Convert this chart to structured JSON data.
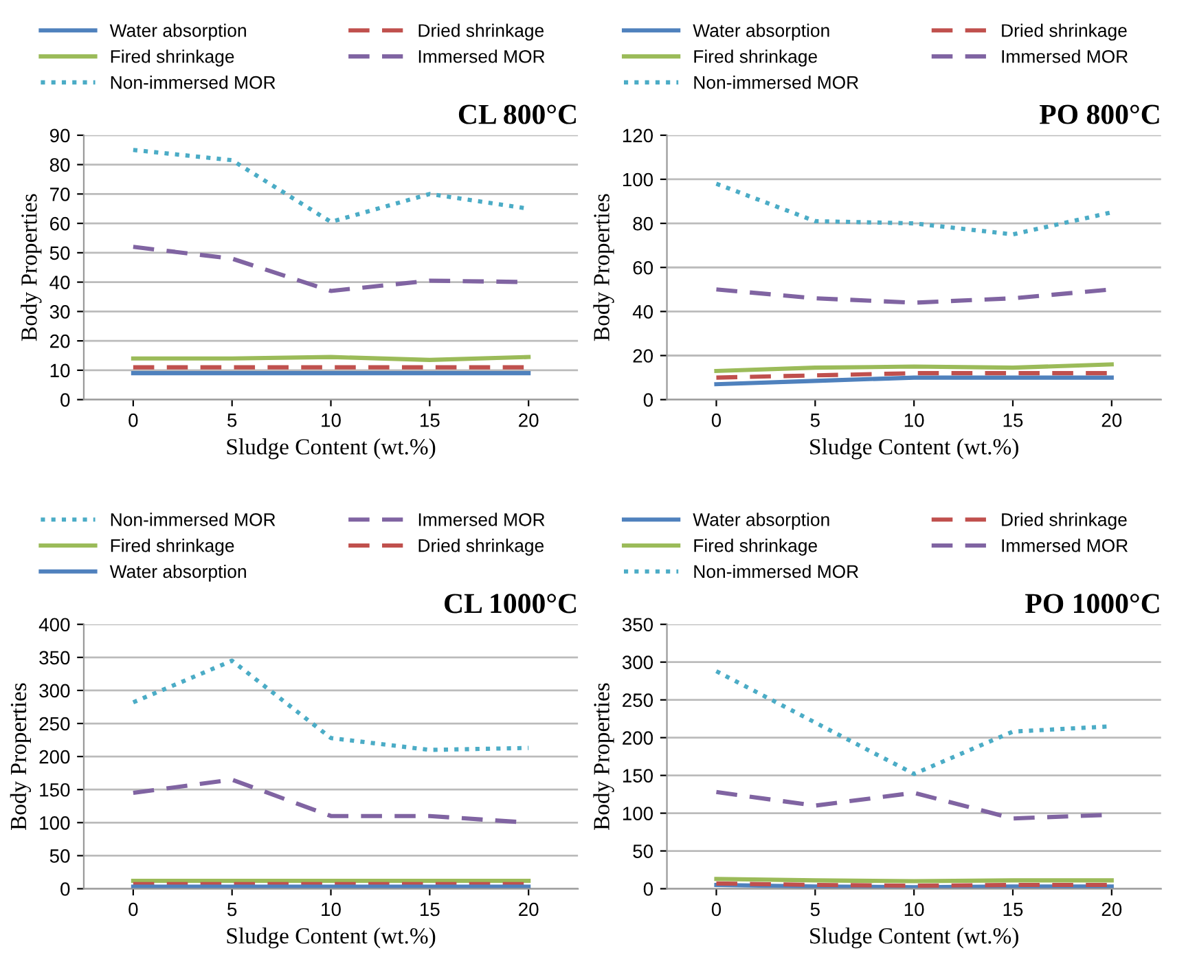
{
  "chart_data": [
    {
      "type": "line",
      "title": "CL 800°C",
      "xlabel": "Sludge Content (wt.%)",
      "ylabel": "Body Properties",
      "categories": [
        "0",
        "5",
        "10",
        "15",
        "20"
      ],
      "ylim": [
        0,
        90
      ],
      "yticks": [
        0,
        10,
        20,
        30,
        40,
        50,
        60,
        70,
        80,
        90
      ],
      "grid": "y",
      "legend": "top",
      "series": [
        {
          "name": "Water absorption",
          "color": "#4f81bd",
          "line_style": "solid",
          "values": [
            9,
            9,
            9,
            9,
            9
          ]
        },
        {
          "name": "Dried shrinkage",
          "color": "#c0504d",
          "line_style": "dashed",
          "values": [
            11,
            11,
            11,
            11,
            11
          ]
        },
        {
          "name": "Fired shrinkage",
          "color": "#9bbb59",
          "line_style": "solid",
          "values": [
            14,
            14,
            14.5,
            13.5,
            14.5
          ]
        },
        {
          "name": "Immersed MOR",
          "color": "#8064a2",
          "line_style": "dashed",
          "values": [
            52,
            48,
            37,
            40.5,
            40
          ]
        },
        {
          "name": "Non-immersed MOR",
          "color": "#4bacc6",
          "line_style": "dotted",
          "values": [
            85,
            81.5,
            60.5,
            70,
            65
          ]
        }
      ]
    },
    {
      "type": "line",
      "title": "PO 800°C",
      "xlabel": "Sludge Content (wt.%)",
      "ylabel": "Body Properties",
      "categories": [
        "0",
        "5",
        "10",
        "15",
        "20"
      ],
      "ylim": [
        0,
        120
      ],
      "yticks": [
        0,
        20,
        40,
        60,
        80,
        100,
        120
      ],
      "grid": "y",
      "legend": "top",
      "series": [
        {
          "name": "Water absorption",
          "color": "#4f81bd",
          "line_style": "solid",
          "values": [
            7,
            8.5,
            10,
            10,
            10
          ]
        },
        {
          "name": "Dried shrinkage",
          "color": "#c0504d",
          "line_style": "dashed",
          "values": [
            10,
            11,
            12,
            12,
            12
          ]
        },
        {
          "name": "Fired shrinkage",
          "color": "#9bbb59",
          "line_style": "solid",
          "values": [
            13,
            14.5,
            15,
            14.5,
            16
          ]
        },
        {
          "name": "Immersed MOR",
          "color": "#8064a2",
          "line_style": "dashed",
          "values": [
            50,
            46,
            44,
            46,
            50
          ]
        },
        {
          "name": "Non-immersed MOR",
          "color": "#4bacc6",
          "line_style": "dotted",
          "values": [
            98,
            81,
            80,
            75,
            85
          ]
        }
      ]
    },
    {
      "type": "line",
      "title": "CL 1000°C",
      "xlabel": "Sludge Content (wt.%)",
      "ylabel": "Body Properties",
      "categories": [
        "0",
        "5",
        "10",
        "15",
        "20"
      ],
      "ylim": [
        0,
        400
      ],
      "yticks": [
        0,
        50,
        100,
        150,
        200,
        250,
        300,
        350,
        400
      ],
      "grid": "y",
      "legend": "top",
      "series": [
        {
          "name": "Non-immersed MOR",
          "color": "#4bacc6",
          "line_style": "dotted",
          "values": [
            282,
            345,
            228,
            210,
            213
          ]
        },
        {
          "name": "Immersed MOR",
          "color": "#8064a2",
          "line_style": "dashed",
          "values": [
            145,
            165,
            110,
            110,
            100
          ]
        },
        {
          "name": "Fired shrinkage",
          "color": "#9bbb59",
          "line_style": "solid",
          "values": [
            12,
            12,
            12,
            12,
            12
          ]
        },
        {
          "name": "Dried shrinkage",
          "color": "#c0504d",
          "line_style": "dashed",
          "values": [
            7,
            7,
            7,
            7,
            7
          ]
        },
        {
          "name": "Water absorption",
          "color": "#4f81bd",
          "line_style": "solid",
          "values": [
            3,
            3,
            3,
            3,
            3
          ]
        }
      ]
    },
    {
      "type": "line",
      "title": "PO 1000°C",
      "xlabel": "Sludge Content (wt.%)",
      "ylabel": "Body Properties",
      "categories": [
        "0",
        "5",
        "10",
        "15",
        "20"
      ],
      "ylim": [
        0,
        350
      ],
      "yticks": [
        0,
        50,
        100,
        150,
        200,
        250,
        300,
        350
      ],
      "grid": "y",
      "legend": "top",
      "series": [
        {
          "name": "Water absorption",
          "color": "#4f81bd",
          "line_style": "solid",
          "values": [
            5,
            3,
            2,
            3,
            3
          ]
        },
        {
          "name": "Dried shrinkage",
          "color": "#c0504d",
          "line_style": "dashed",
          "values": [
            7,
            5,
            4,
            5,
            5
          ]
        },
        {
          "name": "Fired shrinkage",
          "color": "#9bbb59",
          "line_style": "solid",
          "values": [
            13,
            11,
            10,
            11,
            11
          ]
        },
        {
          "name": "Immersed MOR",
          "color": "#8064a2",
          "line_style": "dashed",
          "values": [
            128,
            110,
            127,
            93,
            98
          ]
        },
        {
          "name": "Non-immersed MOR",
          "color": "#4bacc6",
          "line_style": "dotted",
          "values": [
            288,
            220,
            152,
            208,
            215
          ]
        }
      ]
    }
  ]
}
